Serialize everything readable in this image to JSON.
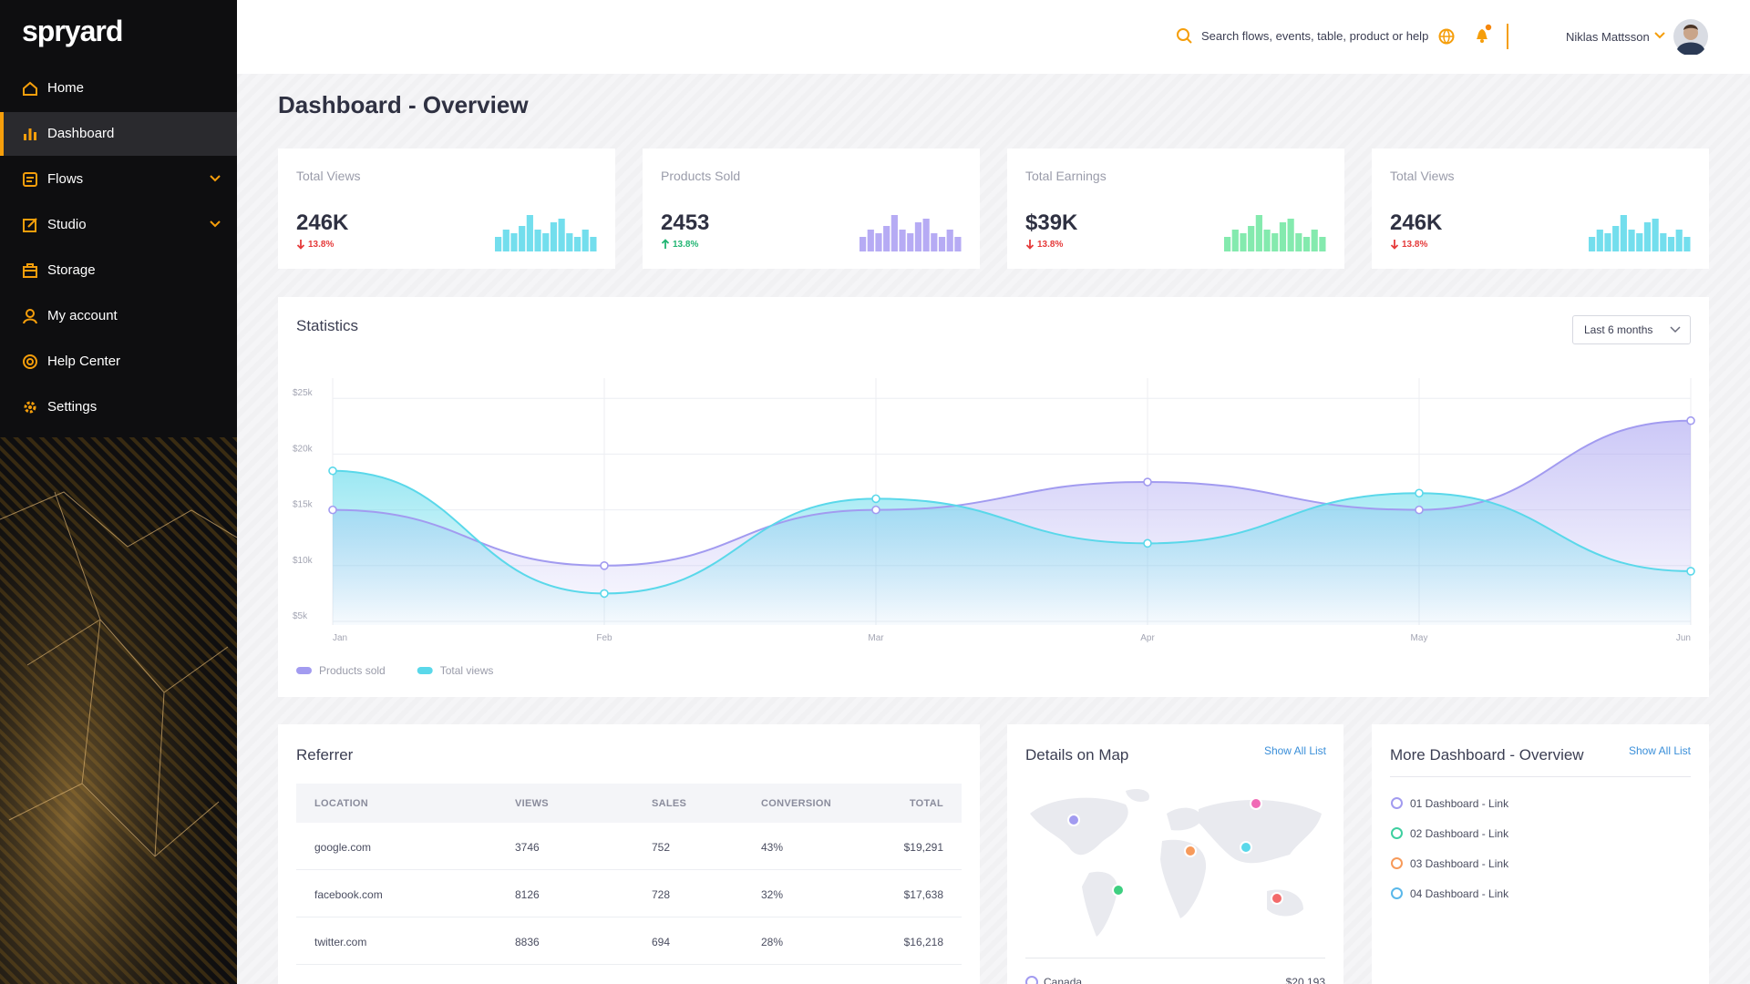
{
  "brand": "spryard",
  "nav": [
    {
      "label": "Home"
    },
    {
      "label": "Dashboard",
      "active": true
    },
    {
      "label": "Flows",
      "expandable": true
    },
    {
      "label": "Studio",
      "expandable": true
    },
    {
      "label": "Storage"
    },
    {
      "label": "My account"
    },
    {
      "label": "Help Center"
    },
    {
      "label": "Settings"
    }
  ],
  "header": {
    "search": "Search flows, events, table, product or help",
    "user": "Niklas Mattsson"
  },
  "page_title": "Dashboard - Overview",
  "cards": [
    {
      "title": "Total Views",
      "value": "246K",
      "change": "13.8%",
      "trend": "down",
      "color": "#5ad8ea",
      "bars": [
        4,
        6,
        5,
        7,
        10,
        6,
        5,
        8,
        9,
        5,
        4,
        6,
        4
      ]
    },
    {
      "title": "Products Sold",
      "value": "2453",
      "change": "13.8%",
      "trend": "up",
      "color": "#a99cf2",
      "bars": [
        4,
        6,
        5,
        7,
        10,
        6,
        5,
        8,
        9,
        5,
        4,
        6,
        4
      ]
    },
    {
      "title": "Total Earnings",
      "value": "$39K",
      "change": "13.8%",
      "trend": "down",
      "color": "#6ee6a0",
      "bars": [
        4,
        6,
        5,
        7,
        10,
        6,
        5,
        8,
        9,
        5,
        4,
        6,
        4
      ]
    },
    {
      "title": "Total Views",
      "value": "246K",
      "change": "13.8%",
      "trend": "down",
      "color": "#5ad8ea",
      "bars": [
        4,
        6,
        5,
        7,
        10,
        6,
        5,
        8,
        9,
        5,
        4,
        6,
        4
      ]
    }
  ],
  "chart_data": {
    "type": "line",
    "title": "Statistics",
    "filter": "Last 6 months",
    "categories": [
      "Jan",
      "Feb",
      "Mar",
      "Apr",
      "May",
      "Jun"
    ],
    "series": [
      {
        "name": "Products sold",
        "color": "#a29bf0",
        "values": [
          15,
          10,
          15,
          17.5,
          15,
          23
        ]
      },
      {
        "name": "Total views",
        "color": "#5ad8ea",
        "values": [
          18.5,
          7.5,
          16,
          12,
          16.5,
          9.5
        ]
      }
    ],
    "ylim": [
      5,
      26
    ],
    "yticks": [
      {
        "value": 5,
        "label": "$5k"
      },
      {
        "value": 10,
        "label": "$10k"
      },
      {
        "value": 15,
        "label": "$15k"
      },
      {
        "value": 20,
        "label": "$20k"
      },
      {
        "value": 25,
        "label": "$25k"
      }
    ],
    "grid": true
  },
  "referrer": {
    "title": "Referrer",
    "columns": [
      "LOCATION",
      "VIEWS",
      "SALES",
      "CONVERSION",
      "TOTAL"
    ],
    "rows": [
      [
        "google.com",
        "3746",
        "752",
        "43%",
        "$19,291"
      ],
      [
        "facebook.com",
        "8126",
        "728",
        "32%",
        "$17,638"
      ],
      [
        "twitter.com",
        "8836",
        "694",
        "28%",
        "$16,218"
      ]
    ]
  },
  "map": {
    "title": "Details on Map",
    "link": "Show All List",
    "rows": [
      [
        "Canada",
        "$20,193"
      ]
    ]
  },
  "more": {
    "title": "More Dashboard - Overview",
    "link": "Show All List",
    "items": [
      {
        "label": "01 Dashboard - Link",
        "color": "#a29bf0"
      },
      {
        "label": "02 Dashboard - Link",
        "color": "#3ecfa0"
      },
      {
        "label": "03 Dashboard - Link",
        "color": "#f79a5a"
      },
      {
        "label": "04 Dashboard - Link",
        "color": "#5ab8ea"
      }
    ]
  }
}
